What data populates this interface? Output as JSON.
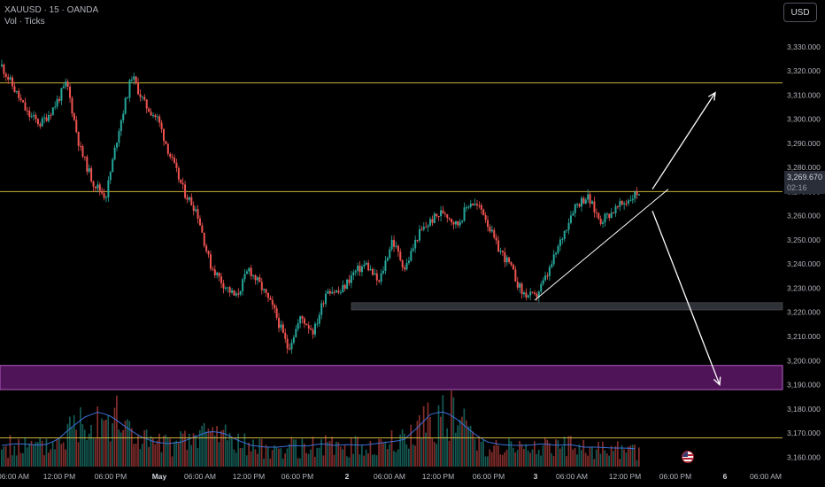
{
  "header": {
    "symbol_line": "XAUUSD · 15 · OANDA",
    "indicator_line": "Vol · Ticks"
  },
  "currency_button": "USD",
  "last_price": {
    "value": "3,269.670",
    "countdown": "02:16"
  },
  "colors": {
    "up": "#26a69a",
    "down": "#ef5350",
    "resistance_line": "#c9b23a",
    "zone": "#7a1f86",
    "support_zone": "#3a3d45",
    "volume_ma": "#3b6fd8",
    "arrows": "#ffffff"
  },
  "icons": {
    "event_flag": "us-flag-icon"
  },
  "chart_data": {
    "type": "candlestick",
    "symbol": "XAUUSD",
    "interval": "15",
    "ylim": [
      3155,
      3330
    ],
    "y_ticks": [
      "3,160.000",
      "3,170.000",
      "3,180.000",
      "3,190.000",
      "3,200.000",
      "3,210.000",
      "3,220.000",
      "3,230.000",
      "3,240.000",
      "3,250.000",
      "3,260.000",
      "3,270.000",
      "3,280.000",
      "3,290.000",
      "3,300.000",
      "3,310.000",
      "3,320.000",
      "3,330.000"
    ],
    "x_ticks": [
      "06:00 AM",
      "12:00 PM",
      "06:00 PM",
      "May",
      "06:00 AM",
      "12:00 PM",
      "06:00 PM",
      "2",
      "06:00 AM",
      "12:00 PM",
      "06:00 PM",
      "3",
      "06:00 AM",
      "12:00 PM",
      "06:00 PM",
      "6",
      "06:00 AM"
    ],
    "price_path": [
      3322,
      3312,
      3302,
      3298,
      3305,
      3315,
      3288,
      3274,
      3268,
      3296,
      3318,
      3306,
      3300,
      3284,
      3270,
      3262,
      3240,
      3232,
      3226,
      3238,
      3230,
      3220,
      3205,
      3218,
      3212,
      3230,
      3228,
      3236,
      3240,
      3232,
      3250,
      3238,
      3252,
      3258,
      3262,
      3256,
      3266,
      3262,
      3248,
      3240,
      3228,
      3226,
      3236,
      3250,
      3264,
      3268,
      3258,
      3262,
      3266,
      3270
    ],
    "horizontal_levels": [
      3315,
      3270
    ],
    "support_zone": [
      3221,
      3224
    ],
    "highlight_zone": [
      3188,
      3198
    ],
    "volume_level": 3168,
    "trendline": {
      "from": [
        "3 01:30",
        3225
      ],
      "to": [
        "3 16:00",
        3271
      ]
    },
    "projections": [
      {
        "direction": "up",
        "from": 3271,
        "to": 3311
      },
      {
        "direction": "down",
        "from": 3262,
        "to": 3190
      }
    ],
    "volume_ma_profile": [
      20,
      22,
      21,
      20,
      26,
      40,
      52,
      58,
      52,
      40,
      30,
      24,
      22,
      24,
      30,
      36,
      34,
      26,
      20,
      18,
      18,
      20,
      19,
      22,
      20,
      21,
      20,
      22,
      24,
      26,
      40,
      56,
      58,
      48,
      34,
      24,
      21,
      20,
      20,
      22,
      20,
      21,
      18,
      18,
      17,
      17,
      16
    ],
    "grid": false,
    "legend": "none"
  }
}
